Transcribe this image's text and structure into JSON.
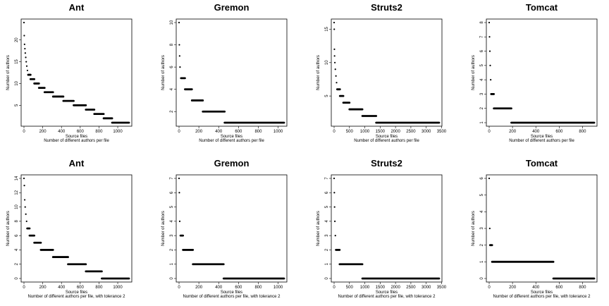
{
  "chart_data": [
    {
      "type": "scatter",
      "title": "Ant",
      "xlabel": "Source files",
      "subtitle": "Number of different authors per file",
      "ylabel": "Number of authors",
      "xlim": [
        0,
        1120
      ],
      "ylim": [
        1,
        24
      ],
      "xticks": [
        "0",
        "200",
        "400",
        "600",
        "800",
        "1000"
      ],
      "yticks": [
        "5",
        "10",
        "15",
        "20"
      ],
      "points": [
        [
          0,
          24
        ],
        [
          3,
          21
        ],
        [
          6,
          19
        ],
        [
          10,
          18
        ],
        [
          14,
          17
        ],
        [
          19,
          16
        ],
        [
          24,
          15
        ],
        [
          30,
          14
        ],
        [
          37,
          13
        ]
      ],
      "segments": [
        [
          45,
          70,
          12
        ],
        [
          70,
          110,
          11
        ],
        [
          110,
          160,
          10
        ],
        [
          160,
          220,
          9
        ],
        [
          220,
          310,
          8
        ],
        [
          310,
          420,
          7
        ],
        [
          420,
          530,
          6
        ],
        [
          530,
          660,
          5
        ],
        [
          660,
          750,
          4
        ],
        [
          750,
          850,
          3
        ],
        [
          850,
          940,
          2
        ],
        [
          940,
          1120,
          1
        ]
      ]
    },
    {
      "type": "scatter",
      "title": "Gremon",
      "xlabel": "Source files",
      "subtitle": "Number of different authors per file",
      "ylabel": "Number of authors",
      "xlim": [
        0,
        1060
      ],
      "ylim": [
        1,
        10
      ],
      "xticks": [
        "0",
        "200",
        "400",
        "600",
        "800",
        "1000"
      ],
      "yticks": [
        "2",
        "4",
        "6",
        "8",
        "10"
      ],
      "points": [
        [
          0,
          10
        ],
        [
          3,
          8
        ],
        [
          6,
          7
        ],
        [
          10,
          6
        ]
      ],
      "segments": [
        [
          20,
          60,
          5
        ],
        [
          60,
          130,
          4
        ],
        [
          130,
          240,
          3
        ],
        [
          240,
          460,
          2
        ],
        [
          460,
          1060,
          1
        ]
      ]
    },
    {
      "type": "scatter",
      "title": "Struts2",
      "xlabel": "Source files",
      "subtitle": "Number of different authors per file",
      "ylabel": "Number of authors",
      "xlim": [
        0,
        3420
      ],
      "ylim": [
        1,
        16
      ],
      "xticks": [
        "0",
        "500",
        "1000",
        "1500",
        "2000",
        "2500",
        "3000",
        "3500"
      ],
      "yticks": [
        "5",
        "10",
        "15"
      ],
      "points": [
        [
          0,
          16
        ],
        [
          5,
          15
        ],
        [
          10,
          12
        ],
        [
          15,
          11
        ],
        [
          25,
          10
        ],
        [
          40,
          9
        ],
        [
          60,
          8
        ],
        [
          80,
          7
        ]
      ],
      "segments": [
        [
          100,
          190,
          6
        ],
        [
          190,
          300,
          5
        ],
        [
          300,
          500,
          4
        ],
        [
          500,
          920,
          3
        ],
        [
          920,
          1370,
          2
        ],
        [
          1370,
          3420,
          1
        ]
      ]
    },
    {
      "type": "scatter",
      "title": "Tomcat",
      "xlabel": "Source files",
      "subtitle": "Number of different authors per file",
      "ylabel": "Number of authors",
      "xlim": [
        0,
        900
      ],
      "ylim": [
        1,
        8
      ],
      "xticks": [
        "0",
        "200",
        "400",
        "600",
        "800"
      ],
      "yticks": [
        "1",
        "2",
        "3",
        "4",
        "5",
        "6",
        "7",
        "8"
      ],
      "points": [
        [
          0,
          8
        ],
        [
          3,
          7
        ],
        [
          6,
          6
        ],
        [
          9,
          5
        ],
        [
          13,
          4
        ]
      ],
      "segments": [
        [
          17,
          40,
          3
        ],
        [
          40,
          190,
          2
        ],
        [
          190,
          900,
          1
        ]
      ]
    },
    {
      "type": "scatter",
      "title": "Ant",
      "xlabel": "Source files",
      "subtitle": "Number of different authors per file, with tolerance 2",
      "ylabel": "Number of authors",
      "xlim": [
        0,
        1120
      ],
      "ylim": [
        0,
        14
      ],
      "xticks": [
        "0",
        "200",
        "400",
        "600",
        "800",
        "1000"
      ],
      "yticks": [
        "0",
        "2",
        "4",
        "6",
        "8",
        "10",
        "12",
        "14"
      ],
      "points": [
        [
          0,
          14
        ],
        [
          4,
          13
        ],
        [
          8,
          11
        ],
        [
          13,
          10
        ],
        [
          20,
          9
        ],
        [
          28,
          8
        ]
      ],
      "segments": [
        [
          35,
          60,
          7
        ],
        [
          60,
          110,
          6
        ],
        [
          110,
          180,
          5
        ],
        [
          180,
          310,
          4
        ],
        [
          310,
          470,
          3
        ],
        [
          470,
          660,
          2
        ],
        [
          660,
          830,
          1
        ],
        [
          830,
          1120,
          0
        ]
      ]
    },
    {
      "type": "scatter",
      "title": "Gremon",
      "xlabel": "Source files",
      "subtitle": "Number of different authors per file, with tolerance 2",
      "ylabel": "Number of authors",
      "xlim": [
        0,
        1060
      ],
      "ylim": [
        0,
        7
      ],
      "xticks": [
        "0",
        "200",
        "400",
        "600",
        "800",
        "1000"
      ],
      "yticks": [
        "0",
        "1",
        "2",
        "3",
        "4",
        "5",
        "6",
        "7"
      ],
      "points": [
        [
          0,
          7
        ],
        [
          3,
          6
        ],
        [
          7,
          4
        ]
      ],
      "segments": [
        [
          15,
          40,
          3
        ],
        [
          40,
          140,
          2
        ],
        [
          140,
          450,
          1
        ],
        [
          450,
          1060,
          0
        ]
      ]
    },
    {
      "type": "scatter",
      "title": "Struts2",
      "xlabel": "Source files",
      "subtitle": "Number of different authors per file, with tolerance 2",
      "ylabel": "Number of authors",
      "xlim": [
        0,
        3420
      ],
      "ylim": [
        0,
        7
      ],
      "xticks": [
        "0",
        "500",
        "1000",
        "1500",
        "2000",
        "2500",
        "3000",
        "3500"
      ],
      "yticks": [
        "0",
        "1",
        "2",
        "3",
        "4",
        "5",
        "6",
        "7"
      ],
      "points": [
        [
          0,
          7
        ],
        [
          8,
          6
        ],
        [
          15,
          5
        ],
        [
          25,
          4
        ],
        [
          40,
          3
        ]
      ],
      "segments": [
        [
          60,
          180,
          2
        ],
        [
          180,
          920,
          1
        ],
        [
          920,
          3420,
          0
        ]
      ]
    },
    {
      "type": "scatter",
      "title": "Tomcat",
      "xlabel": "Source files",
      "subtitle": "Number of different authors per file, with tolerance 2",
      "ylabel": "Number of authors",
      "xlim": [
        0,
        900
      ],
      "ylim": [
        0,
        6
      ],
      "xticks": [
        "0",
        "200",
        "400",
        "600",
        "800"
      ],
      "yticks": [
        "0",
        "1",
        "2",
        "3",
        "4",
        "5",
        "6"
      ],
      "points": [
        [
          0,
          6
        ],
        [
          5,
          3
        ]
      ],
      "segments": [
        [
          8,
          25,
          2
        ],
        [
          25,
          550,
          1
        ],
        [
          550,
          900,
          0
        ]
      ]
    }
  ]
}
